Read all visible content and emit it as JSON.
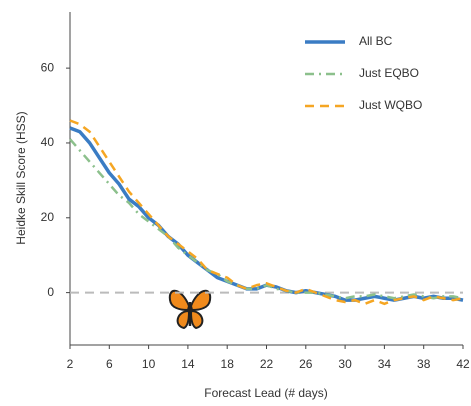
{
  "chart_data": {
    "type": "line",
    "x_label": "Forecast Lead (# days)",
    "y_label": "Heidke Skill Score (HSS)",
    "x": [
      2,
      3,
      4,
      5,
      6,
      7,
      8,
      9,
      10,
      11,
      12,
      13,
      14,
      15,
      16,
      17,
      18,
      19,
      20,
      21,
      22,
      23,
      24,
      25,
      26,
      27,
      28,
      29,
      30,
      31,
      32,
      33,
      34,
      35,
      36,
      37,
      38,
      39,
      40,
      41,
      42
    ],
    "series": [
      {
        "name": "All BC",
        "color": "#3a7cc4",
        "style": "solid",
        "values": [
          44,
          43,
          40,
          36,
          32,
          29,
          25,
          23,
          20,
          18,
          15,
          13,
          10,
          8,
          6,
          4,
          3,
          2,
          1,
          1,
          2,
          1.5,
          0.5,
          0,
          0.5,
          0,
          -0.5,
          -1,
          -2,
          -2,
          -1.5,
          -1,
          -1.5,
          -2,
          -1.5,
          -1,
          -1.5,
          -1,
          -1.5,
          -1.5,
          -2
        ]
      },
      {
        "name": "Just EQBO",
        "color": "#8cc08c",
        "style": "dashdot",
        "values": [
          41,
          38,
          35,
          32,
          29,
          26,
          24,
          21,
          19,
          17,
          15,
          12,
          10,
          8,
          6,
          5,
          3,
          2,
          1,
          1,
          2,
          1,
          0.5,
          0,
          0,
          0,
          -0.5,
          -1,
          -1.5,
          -1,
          -1,
          -0.5,
          -1,
          -1.5,
          -1,
          -0.5,
          -1,
          -1.5,
          -1,
          -1,
          -1.5
        ]
      },
      {
        "name": "Just WQBO",
        "color": "#f5a623",
        "style": "dashed",
        "values": [
          46,
          45,
          43,
          39,
          35,
          31,
          27,
          24,
          21,
          18,
          15,
          13,
          11,
          9,
          6,
          5,
          4,
          2,
          1,
          2,
          2.5,
          1.5,
          0.5,
          0,
          1,
          0,
          -1,
          -2,
          -2.5,
          -2,
          -3,
          -2,
          -3,
          -2,
          -1.5,
          -1,
          -2,
          -1,
          -1.5,
          -2,
          -1.5
        ]
      }
    ],
    "reference_line": 0,
    "xlim": [
      2,
      42
    ],
    "xticks": [
      2,
      6,
      10,
      14,
      18,
      22,
      26,
      30,
      34,
      38,
      42
    ],
    "ylim": [
      -14,
      75
    ],
    "yticks": [
      0,
      20,
      40,
      60
    ],
    "legend": "upper right"
  }
}
